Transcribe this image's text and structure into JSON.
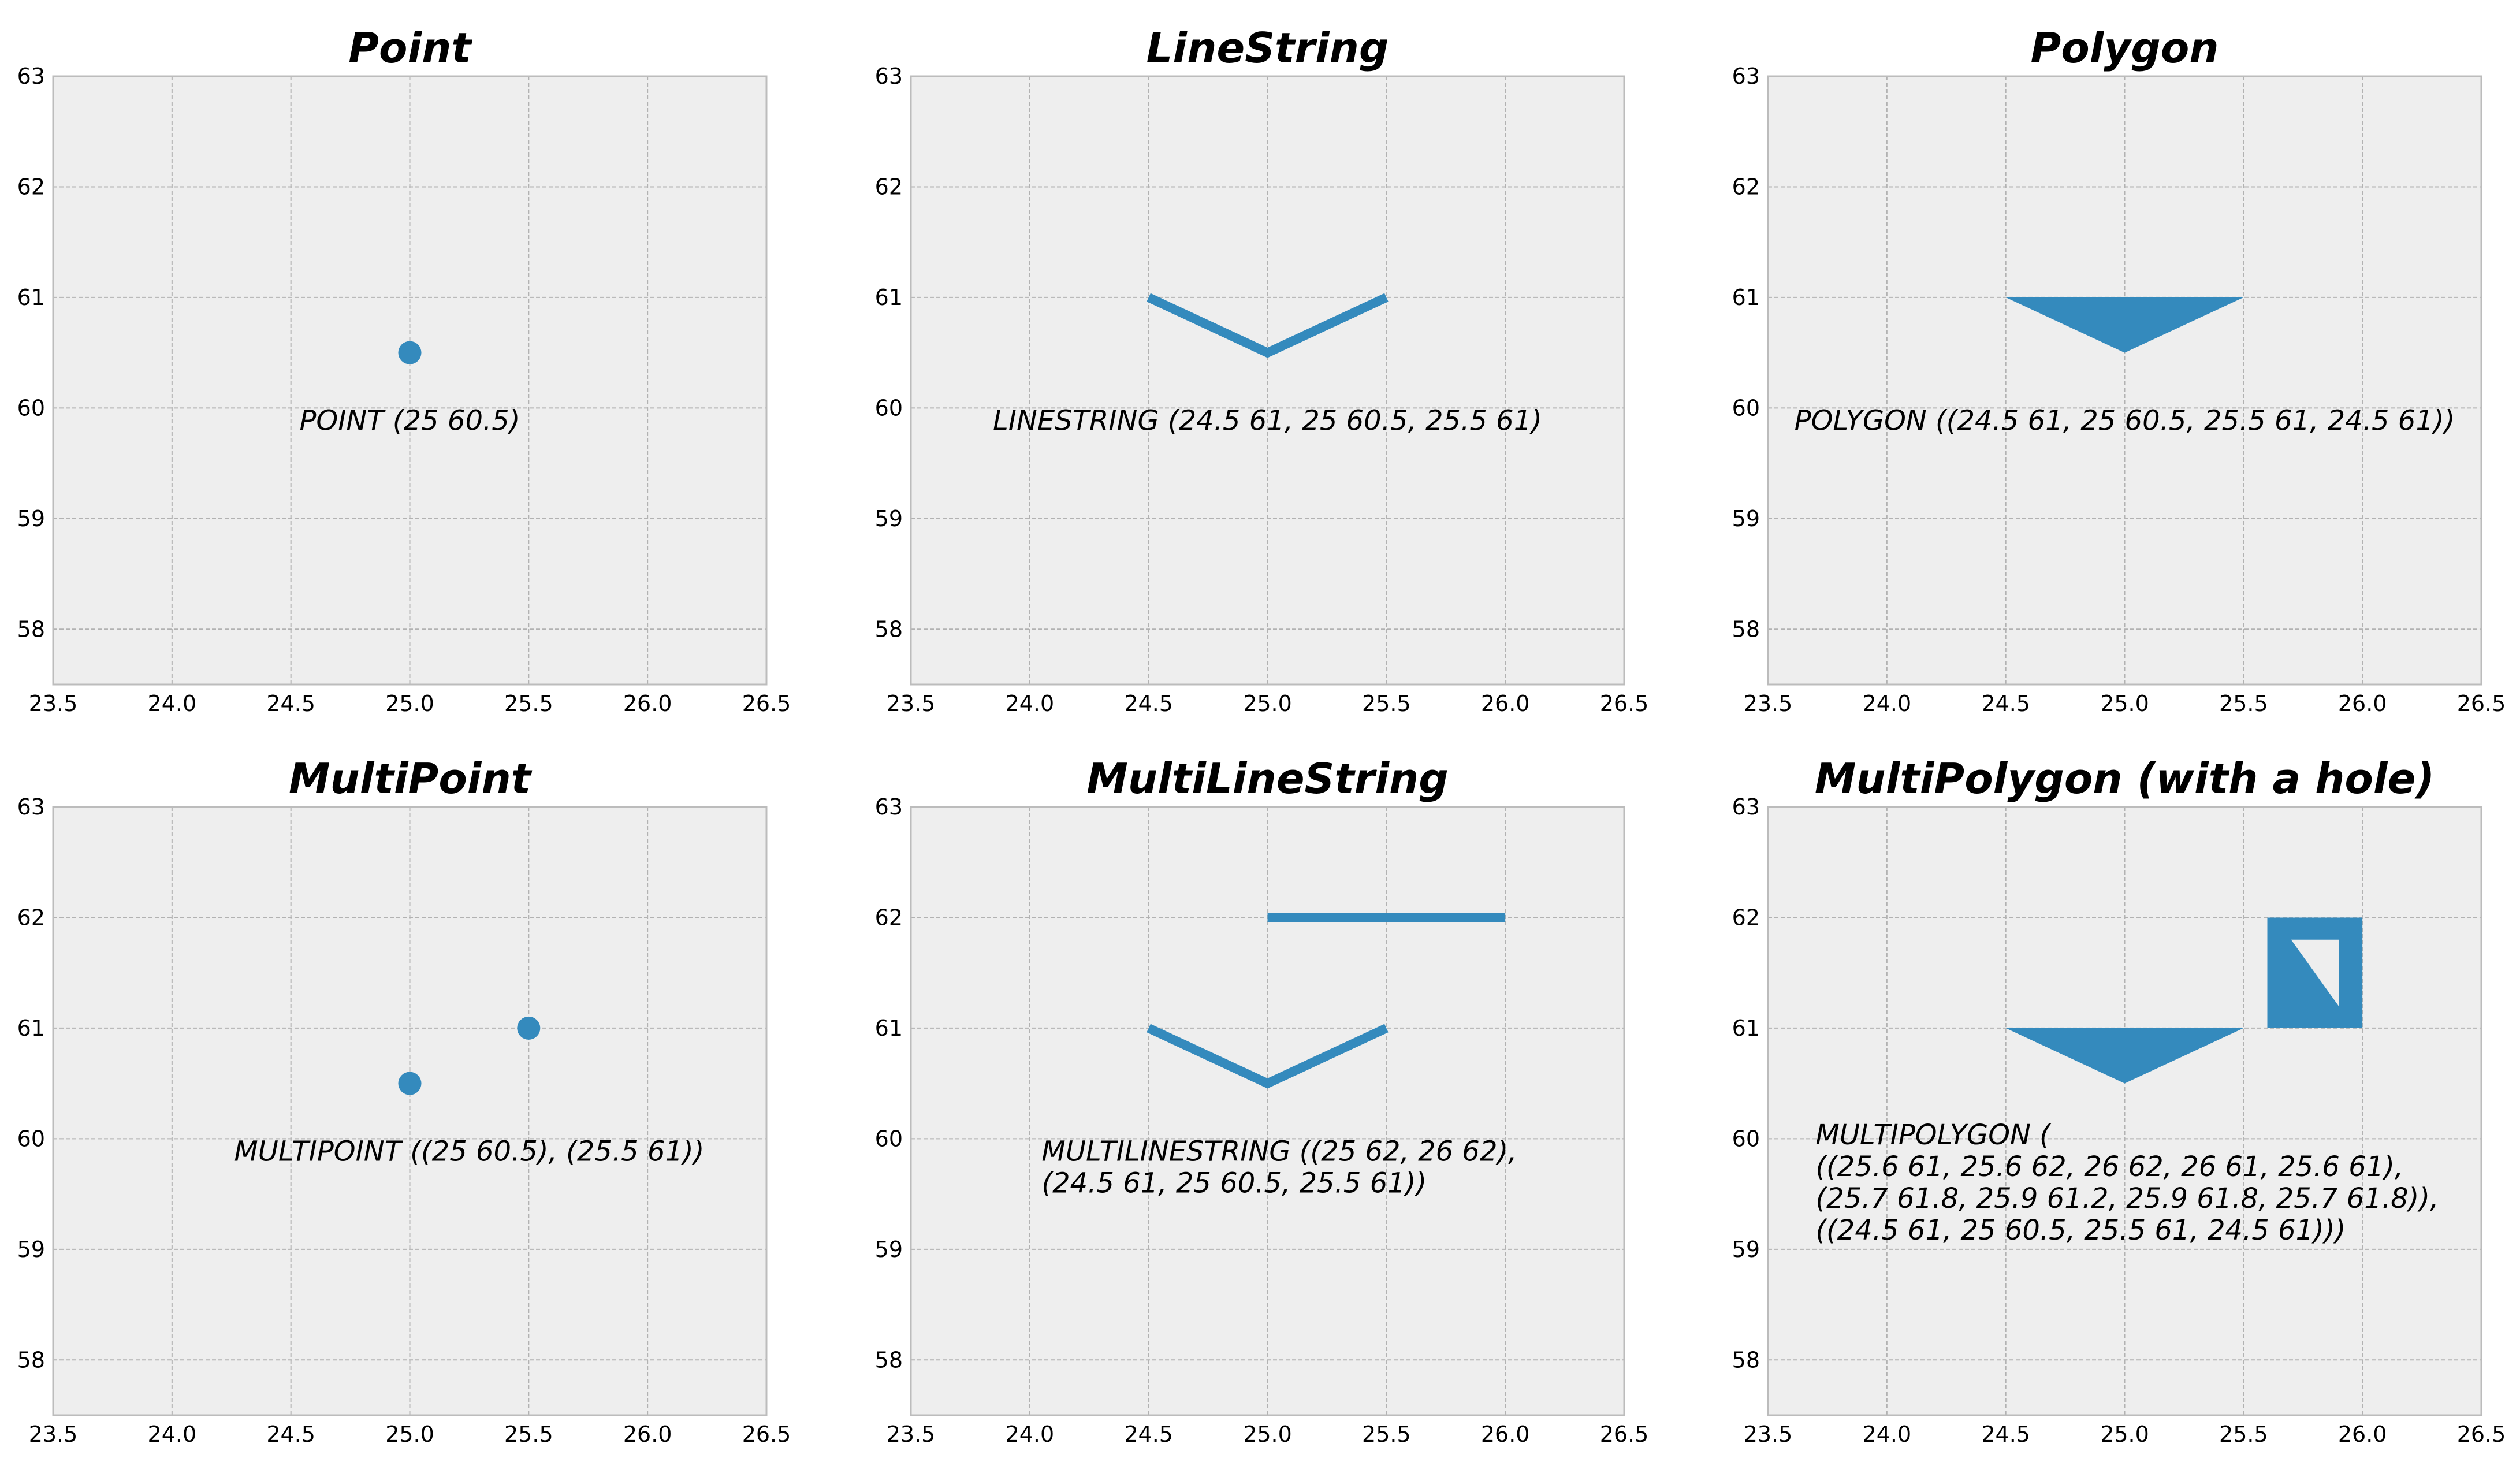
{
  "figure": {
    "accent": "#348ABD",
    "panel_bg": "#EEEEEE",
    "grid_color": "#B2B2B2"
  },
  "chart_data": [
    {
      "type": "scatter",
      "geometry": "Point",
      "title": "Point",
      "xlim": [
        23.5,
        26.5
      ],
      "ylim": [
        57.5,
        63
      ],
      "xticks": [
        "23.5",
        "24.0",
        "24.5",
        "25.0",
        "25.5",
        "26.0",
        "26.5"
      ],
      "yticks": [
        "58",
        "59",
        "60",
        "61",
        "62",
        "63"
      ],
      "points": [
        [
          25,
          60.5
        ]
      ],
      "annotation": {
        "x": 25,
        "y": 59.8,
        "lines": [
          "POINT (25 60.5)"
        ]
      }
    },
    {
      "type": "line",
      "geometry": "LineString",
      "title": "LineString",
      "xlim": [
        23.5,
        26.5
      ],
      "ylim": [
        57.5,
        63
      ],
      "xticks": [
        "23.5",
        "24.0",
        "24.5",
        "25.0",
        "25.5",
        "26.0",
        "26.5"
      ],
      "yticks": [
        "58",
        "59",
        "60",
        "61",
        "62",
        "63"
      ],
      "lines": [
        [
          [
            24.5,
            61
          ],
          [
            25,
            60.5
          ],
          [
            25.5,
            61
          ]
        ]
      ],
      "annotation": {
        "x": 25,
        "y": 59.8,
        "lines": [
          "LINESTRING (24.5 61, 25 60.5, 25.5 61)"
        ]
      }
    },
    {
      "type": "area",
      "geometry": "Polygon",
      "title": "Polygon",
      "xlim": [
        23.5,
        26.5
      ],
      "ylim": [
        57.5,
        63
      ],
      "xticks": [
        "23.5",
        "24.0",
        "24.5",
        "25.0",
        "25.5",
        "26.0",
        "26.5"
      ],
      "yticks": [
        "58",
        "59",
        "60",
        "61",
        "62",
        "63"
      ],
      "polygons": [
        {
          "exterior": [
            [
              24.5,
              61
            ],
            [
              25,
              60.5
            ],
            [
              25.5,
              61
            ],
            [
              24.5,
              61
            ]
          ],
          "holes": []
        }
      ],
      "annotation": {
        "x": 25,
        "y": 59.8,
        "lines": [
          "POLYGON ((24.5 61, 25 60.5, 25.5 61, 24.5 61))"
        ]
      }
    },
    {
      "type": "scatter",
      "geometry": "MultiPoint",
      "title": "MultiPoint",
      "xlim": [
        23.5,
        26.5
      ],
      "ylim": [
        57.5,
        63
      ],
      "xticks": [
        "23.5",
        "24.0",
        "24.5",
        "25.0",
        "25.5",
        "26.0",
        "26.5"
      ],
      "yticks": [
        "58",
        "59",
        "60",
        "61",
        "62",
        "63"
      ],
      "points": [
        [
          25,
          60.5
        ],
        [
          25.5,
          61
        ]
      ],
      "annotation": {
        "x": 25.25,
        "y": 59.8,
        "lines": [
          "MULTIPOINT ((25 60.5), (25.5 61))"
        ]
      }
    },
    {
      "type": "line",
      "geometry": "MultiLineString",
      "title": "MultiLineString",
      "xlim": [
        23.5,
        26.5
      ],
      "ylim": [
        57.5,
        63
      ],
      "xticks": [
        "23.5",
        "24.0",
        "24.5",
        "25.0",
        "25.5",
        "26.0",
        "26.5"
      ],
      "yticks": [
        "58",
        "59",
        "60",
        "61",
        "62",
        "63"
      ],
      "lines": [
        [
          [
            25,
            62
          ],
          [
            26,
            62
          ]
        ],
        [
          [
            24.5,
            61
          ],
          [
            25,
            60.5
          ],
          [
            25.5,
            61
          ]
        ]
      ],
      "annotation": {
        "x": 24.05,
        "y": 59.8,
        "align": "left",
        "lines": [
          "MULTILINESTRING ((25 62, 26 62),",
          "(24.5 61, 25 60.5, 25.5 61))"
        ]
      }
    },
    {
      "type": "area",
      "geometry": "MultiPolygon",
      "title": "MultiPolygon (with a hole)",
      "xlim": [
        23.5,
        26.5
      ],
      "ylim": [
        57.5,
        63
      ],
      "xticks": [
        "23.5",
        "24.0",
        "24.5",
        "25.0",
        "25.5",
        "26.0",
        "26.5"
      ],
      "yticks": [
        "58",
        "59",
        "60",
        "61",
        "62",
        "63"
      ],
      "polygons": [
        {
          "exterior": [
            [
              25.6,
              61
            ],
            [
              25.6,
              62
            ],
            [
              26,
              62
            ],
            [
              26,
              61
            ],
            [
              25.6,
              61
            ]
          ],
          "holes": [
            [
              [
                25.7,
                61.8
              ],
              [
                25.9,
                61.2
              ],
              [
                25.9,
                61.8
              ],
              [
                25.7,
                61.8
              ]
            ]
          ]
        },
        {
          "exterior": [
            [
              24.5,
              61
            ],
            [
              25,
              60.5
            ],
            [
              25.5,
              61
            ],
            [
              24.5,
              61
            ]
          ],
          "holes": []
        }
      ],
      "annotation": {
        "x": 23.7,
        "y": 59.95,
        "align": "left",
        "lines": [
          "MULTIPOLYGON (",
          "((25.6 61, 25.6 62, 26 62, 26 61, 25.6 61),",
          "(25.7 61.8, 25.9 61.2, 25.9 61.8, 25.7 61.8)),",
          "((24.5 61, 25 60.5, 25.5 61, 24.5 61)))"
        ]
      }
    }
  ]
}
